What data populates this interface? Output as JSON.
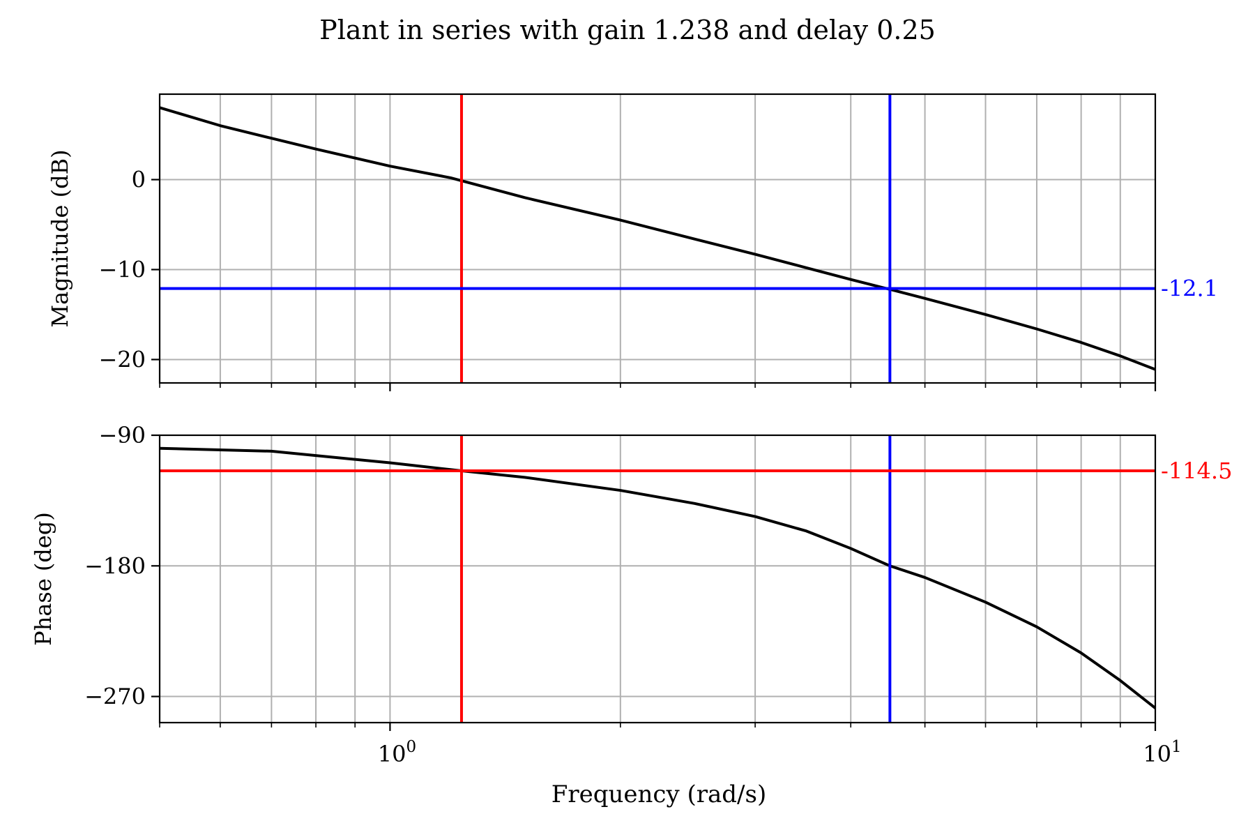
{
  "title": "Plant in series with gain 1.238 and delay 0.25",
  "colors": {
    "curve": "#000000",
    "gain_crossover": "#ff0000",
    "phase_crossover": "#0000ff",
    "grid": "#b0b0b0"
  },
  "chart_data": [
    {
      "type": "line",
      "panel": "magnitude",
      "xscale": "log",
      "xlim": [
        0.5,
        10
      ],
      "ylim": [
        -22.6,
        9.5
      ],
      "ylabel": "Magnitude (dB)",
      "yticks": [
        0,
        -10,
        -20
      ],
      "ytick_labels": [
        "0",
        "−10",
        "−20"
      ],
      "grid": true,
      "series": [
        {
          "x": [
            0.5,
            0.6,
            0.7,
            0.8,
            1.0,
            1.2,
            1.5,
            2.0,
            2.5,
            3.0,
            3.5,
            4.0,
            4.5,
            5.0,
            6.0,
            7.0,
            8.0,
            9.0,
            10.0
          ],
          "y": [
            8.0,
            6.0,
            4.6,
            3.4,
            1.5,
            0.2,
            -2.0,
            -4.5,
            -6.6,
            -8.3,
            -9.8,
            -11.1,
            -12.2,
            -13.2,
            -15.0,
            -16.6,
            -18.1,
            -19.6,
            -21.1
          ]
        }
      ],
      "hlines": [
        {
          "y": -12.1,
          "label": "-12.1",
          "color": "phase_crossover"
        }
      ],
      "vlines": [
        {
          "x": 1.24,
          "color": "gain_crossover"
        },
        {
          "x": 4.5,
          "color": "phase_crossover"
        }
      ]
    },
    {
      "type": "line",
      "panel": "phase",
      "xscale": "log",
      "xlim": [
        0.5,
        10
      ],
      "ylim": [
        -288,
        -90
      ],
      "xlabel": "Frequency (rad/s)",
      "ylabel": "Phase (deg)",
      "yticks": [
        -90,
        -180,
        -270
      ],
      "ytick_labels": [
        "−90",
        "−180",
        "−270"
      ],
      "xticks": [
        1,
        10
      ],
      "xtick_labels": [
        {
          "base": "10",
          "exp": "0"
        },
        {
          "base": "10",
          "exp": "1"
        }
      ],
      "grid": true,
      "series": [
        {
          "x": [
            0.5,
            0.7,
            1.0,
            1.24,
            1.5,
            2.0,
            2.5,
            3.0,
            3.5,
            4.0,
            4.5,
            5.0,
            6.0,
            7.0,
            8.0,
            9.0,
            10.0
          ],
          "y": [
            -99,
            -101,
            -109,
            -114.5,
            -119,
            -128,
            -137,
            -146,
            -156,
            -168,
            -180,
            -188,
            -205,
            -222,
            -240,
            -259,
            -278
          ]
        }
      ],
      "hlines": [
        {
          "y": -114.5,
          "label": "-114.5",
          "color": "gain_crossover"
        }
      ],
      "vlines": [
        {
          "x": 1.24,
          "color": "gain_crossover"
        },
        {
          "x": 4.5,
          "color": "phase_crossover"
        }
      ]
    }
  ]
}
